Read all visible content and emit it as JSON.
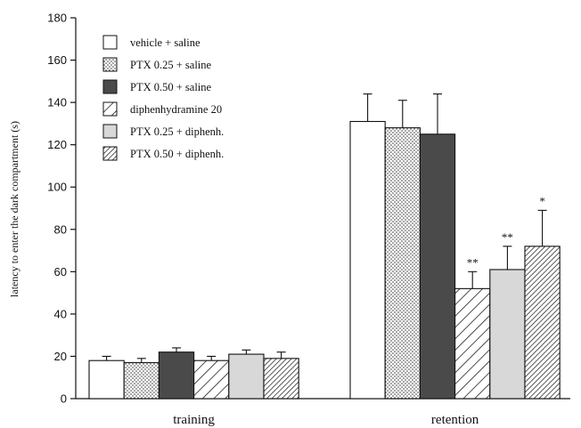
{
  "chart_data": {
    "type": "bar",
    "title": "",
    "xlabel": "",
    "ylabel": "latency to enter the dark compartment (s)",
    "ylim": [
      0,
      180
    ],
    "yticks": [
      0,
      20,
      40,
      60,
      80,
      100,
      120,
      140,
      160,
      180
    ],
    "categories": [
      "training",
      "retention"
    ],
    "grid": false,
    "legend_position": "top-left",
    "series": [
      {
        "name": "vehicle + saline",
        "pattern": "open",
        "values": [
          18,
          131
        ],
        "errors": [
          2,
          13
        ],
        "annotations": [
          "",
          ""
        ]
      },
      {
        "name": "PTX 0.25 + saline",
        "pattern": "dotted",
        "values": [
          17,
          128
        ],
        "errors": [
          2,
          13
        ],
        "annotations": [
          "",
          ""
        ]
      },
      {
        "name": "PTX 0.50 + saline",
        "pattern": "solid-dark",
        "values": [
          22,
          125
        ],
        "errors": [
          2,
          19
        ],
        "annotations": [
          "",
          ""
        ]
      },
      {
        "name": "diphenhydramine 20",
        "pattern": "wide-hatch",
        "values": [
          18,
          52
        ],
        "errors": [
          2,
          8
        ],
        "annotations": [
          "",
          "**"
        ]
      },
      {
        "name": "PTX 0.25 + diphenh.",
        "pattern": "light-grey",
        "values": [
          21,
          61
        ],
        "errors": [
          2,
          11
        ],
        "annotations": [
          "",
          "**"
        ]
      },
      {
        "name": "PTX 0.50 + diphenh.",
        "pattern": "dense-hatch",
        "values": [
          19,
          72
        ],
        "errors": [
          3,
          17
        ],
        "annotations": [
          "",
          "*"
        ]
      }
    ]
  }
}
